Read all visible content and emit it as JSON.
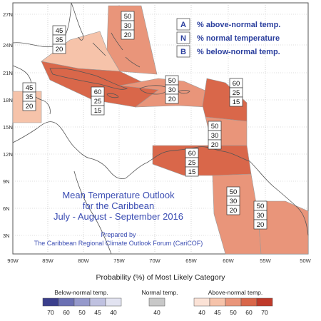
{
  "map": {
    "title_lines": [
      "Mean Temperature Outlook",
      "for the Caribbean",
      "July - August - September 2016"
    ],
    "prepared_by": "Prepared by",
    "organization": "The Caribbean Regional Climate Outlook Forum (CariCOF)",
    "lat_labels": [
      "27N",
      "24N",
      "21N",
      "18N",
      "15N",
      "12N",
      "9N",
      "6N",
      "3N"
    ],
    "lon_labels": [
      "90W",
      "85W",
      "80W",
      "75W",
      "70W",
      "65W",
      "60W",
      "55W",
      "50W"
    ],
    "legend_key": [
      {
        "code": "A",
        "text": "% above-normal temp."
      },
      {
        "code": "N",
        "text": "% normal temperature"
      },
      {
        "code": "B",
        "text": "% below-normal temp."
      }
    ],
    "regions": [
      {
        "id": "bahamas-east",
        "category": "above",
        "level": 50,
        "values": [
          "50",
          "30",
          "20"
        ]
      },
      {
        "id": "bahamas-west",
        "category": "above",
        "level": 45,
        "values": [
          "45",
          "35",
          "20"
        ]
      },
      {
        "id": "belize",
        "category": "above",
        "level": 45,
        "values": [
          "45",
          "35",
          "20"
        ]
      },
      {
        "id": "cuba-jamaica",
        "category": "above",
        "level": 60,
        "values": [
          "60",
          "25",
          "15"
        ]
      },
      {
        "id": "hispaniola",
        "category": "above",
        "level": 50,
        "values": [
          "50",
          "30",
          "20"
        ]
      },
      {
        "id": "leeward-islands",
        "category": "above",
        "level": 60,
        "values": [
          "60",
          "25",
          "15"
        ]
      },
      {
        "id": "windward-islands",
        "category": "above",
        "level": 50,
        "values": [
          "50",
          "30",
          "20"
        ]
      },
      {
        "id": "venezuela-coast",
        "category": "above",
        "level": 60,
        "values": [
          "60",
          "25",
          "15"
        ]
      },
      {
        "id": "guyana",
        "category": "above",
        "level": 50,
        "values": [
          "50",
          "30",
          "20"
        ]
      },
      {
        "id": "suriname-guiana",
        "category": "above",
        "level": 50,
        "values": [
          "50",
          "30",
          "20"
        ]
      }
    ],
    "legend": {
      "title": "Probability (%) of Most Likely Category",
      "below_label": "Below-normal temp.",
      "normal_label": "Normal temp.",
      "above_label": "Above-normal temp.",
      "below_values": [
        "70",
        "60",
        "50",
        "45",
        "40"
      ],
      "normal_values": [
        "40"
      ],
      "above_values": [
        "40",
        "45",
        "50",
        "60",
        "70"
      ],
      "below_colors": [
        "#3b3f8c",
        "#6b70b3",
        "#9599cb",
        "#bfc1e0",
        "#e2e3f1"
      ],
      "normal_colors": [
        "#c8c8c8"
      ],
      "above_colors": [
        "#fbe2d6",
        "#f6c3aa",
        "#e9957a",
        "#d9674a",
        "#bf3a2a"
      ]
    }
  }
}
